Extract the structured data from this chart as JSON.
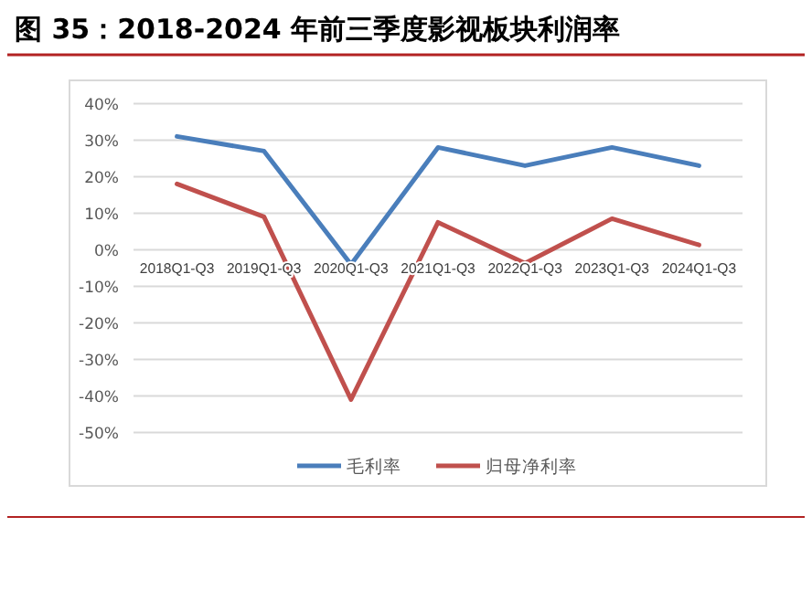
{
  "chart_data": {
    "type": "line",
    "title": "图 35：2018-2024 年前三季度影视板块利润率",
    "categories": [
      "2018Q1-Q3",
      "2019Q1-Q3",
      "2020Q1-Q3",
      "2021Q1-Q3",
      "2022Q1-Q3",
      "2023Q1-Q3",
      "2024Q1-Q3"
    ],
    "series": [
      {
        "name": "毛利率",
        "color": "#4a7ebb",
        "values": [
          31,
          27,
          -4,
          28,
          23,
          28,
          23
        ]
      },
      {
        "name": "归母净利率",
        "color": "#c0504d",
        "values": [
          18,
          9,
          -41,
          7.5,
          -3.7,
          8.5,
          1.3
        ]
      }
    ],
    "ylim": [
      -50,
      40
    ],
    "yticks": [
      {
        "value": 40,
        "label": "40%"
      },
      {
        "value": 30,
        "label": "30%"
      },
      {
        "value": 20,
        "label": "20%"
      },
      {
        "value": 10,
        "label": "10%"
      },
      {
        "value": 0,
        "label": "0%"
      },
      {
        "value": -10,
        "label": "-10%"
      },
      {
        "value": -20,
        "label": "-20%"
      },
      {
        "value": -30,
        "label": "-30%"
      },
      {
        "value": -40,
        "label": "-40%"
      },
      {
        "value": -50,
        "label": "-50%"
      }
    ],
    "grid": "y",
    "legend": "bottom",
    "marker": "none",
    "line_style": "solid"
  }
}
